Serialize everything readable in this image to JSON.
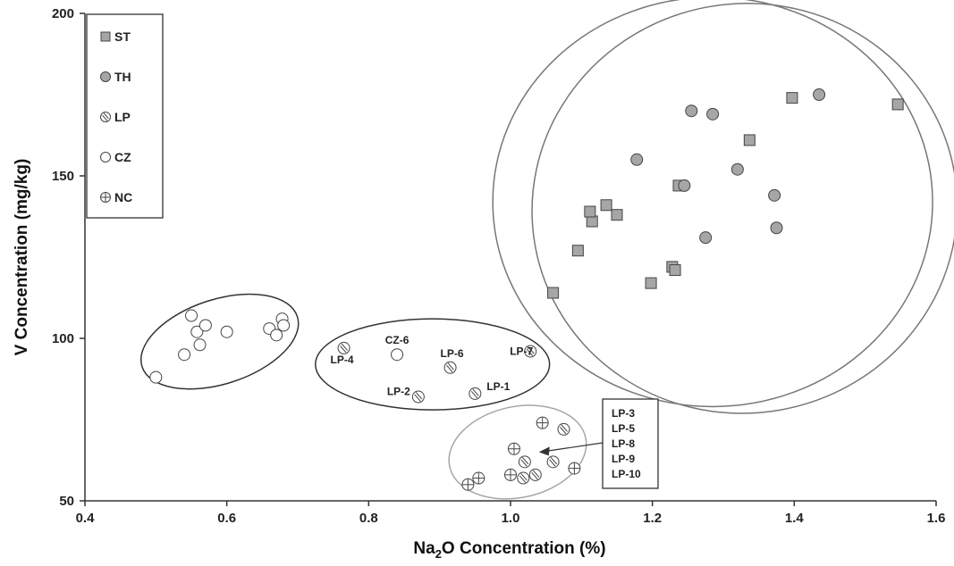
{
  "chart_data": {
    "type": "scatter",
    "xlabel_main": "Na",
    "xlabel_sub": "2",
    "xlabel_rest": "O Concentration (%)",
    "ylabel": "V Concentration (mg/kg)",
    "xlim": [
      0.4,
      1.6
    ],
    "ylim": [
      50,
      200
    ],
    "x_ticks": [
      "0.4",
      "0.6",
      "0.8",
      "1.0",
      "1.2",
      "1.4",
      "1.6"
    ],
    "y_ticks": [
      "50",
      "100",
      "150",
      "200"
    ],
    "x_tick_values": [
      0.4,
      0.6,
      0.8,
      1.0,
      1.2,
      1.4,
      1.6
    ],
    "y_tick_values": [
      50,
      100,
      150,
      200
    ],
    "grid": false,
    "legend_position": "top-left",
    "series": [
      {
        "name": "ST",
        "marker": "square",
        "color": "#a6a6a6",
        "points": [
          [
            1.06,
            114
          ],
          [
            1.095,
            127
          ],
          [
            1.115,
            136
          ],
          [
            1.112,
            139
          ],
          [
            1.135,
            141
          ],
          [
            1.15,
            138
          ],
          [
            1.198,
            117
          ],
          [
            1.228,
            122
          ],
          [
            1.232,
            121
          ],
          [
            1.237,
            147
          ],
          [
            1.337,
            161
          ],
          [
            1.397,
            174
          ],
          [
            1.546,
            172
          ]
        ]
      },
      {
        "name": "TH",
        "marker": "circle-filled",
        "color": "#a6a6a6",
        "points": [
          [
            1.178,
            155
          ],
          [
            1.245,
            147
          ],
          [
            1.255,
            170
          ],
          [
            1.275,
            131
          ],
          [
            1.285,
            169
          ],
          [
            1.32,
            152
          ],
          [
            1.372,
            144
          ],
          [
            1.375,
            134
          ],
          [
            1.435,
            175
          ]
        ]
      },
      {
        "name": "LP",
        "marker": "circle-slash",
        "color": "#ffffff",
        "points": [
          [
            0.765,
            97
          ],
          [
            0.87,
            82
          ],
          [
            0.915,
            91
          ],
          [
            0.95,
            83
          ],
          [
            1.028,
            96
          ],
          [
            1.02,
            62
          ],
          [
            1.018,
            57
          ],
          [
            1.035,
            58
          ],
          [
            1.06,
            62
          ],
          [
            1.075,
            72
          ]
        ]
      },
      {
        "name": "CZ",
        "marker": "circle-open",
        "color": "#ffffff",
        "points": [
          [
            0.5,
            88
          ],
          [
            0.54,
            95
          ],
          [
            0.55,
            107
          ],
          [
            0.558,
            102
          ],
          [
            0.562,
            98
          ],
          [
            0.57,
            104
          ],
          [
            0.6,
            102
          ],
          [
            0.66,
            103
          ],
          [
            0.67,
            101
          ],
          [
            0.678,
            106
          ],
          [
            0.68,
            104
          ],
          [
            0.84,
            95
          ]
        ]
      },
      {
        "name": "NC",
        "marker": "circle-cross",
        "color": "#ffffff",
        "points": [
          [
            0.94,
            55
          ],
          [
            0.955,
            57
          ],
          [
            1.0,
            58
          ],
          [
            1.005,
            66
          ],
          [
            1.045,
            74
          ],
          [
            1.09,
            60
          ]
        ]
      }
    ],
    "annotations": [
      {
        "text": "LP-4",
        "x": 0.765,
        "y": 97
      },
      {
        "text": "CZ-6",
        "x": 0.84,
        "y": 95
      },
      {
        "text": "LP-6",
        "x": 0.915,
        "y": 91
      },
      {
        "text": "LP-7",
        "x": 1.028,
        "y": 96
      },
      {
        "text": "LP-2",
        "x": 0.87,
        "y": 82
      },
      {
        "text": "LP-1",
        "x": 0.95,
        "y": 83
      }
    ],
    "callout": {
      "lines": [
        "LP-3",
        "LP-5",
        "LP-8",
        "LP-9",
        "LP-10"
      ],
      "arrow_to": [
        1.04,
        65
      ]
    },
    "ellipses": [
      {
        "name": "ellipse-cz-group",
        "cx": 0.59,
        "cy": 99,
        "rx": 0.115,
        "ry": 13,
        "angle": -18,
        "color": "#333333"
      },
      {
        "name": "ellipse-lp-group",
        "cx": 0.89,
        "cy": 92,
        "rx": 0.165,
        "ry": 14,
        "angle": 0,
        "color": "#333333"
      },
      {
        "name": "ellipse-nc-group",
        "cx": 1.01,
        "cy": 65,
        "rx": 0.098,
        "ry": 14,
        "angle": -12,
        "color": "#a6a6a6"
      },
      {
        "name": "ellipse-st-group",
        "cx": 1.285,
        "cy": 142,
        "rx": 0.31,
        "ry": 63,
        "angle": 0,
        "color": "#777777"
      },
      {
        "name": "ellipse-th-group",
        "cx": 1.33,
        "cy": 140,
        "rx": 0.3,
        "ry": 63,
        "angle": -10,
        "color": "#777777"
      }
    ]
  }
}
